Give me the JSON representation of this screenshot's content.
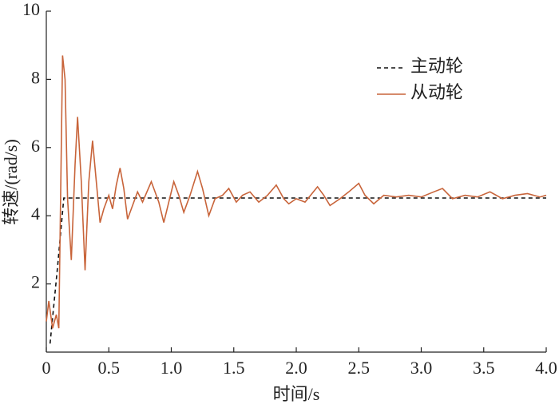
{
  "chart_data": {
    "type": "line",
    "x_label": "时间/s",
    "y_label": "转速/(rad/s)",
    "xlim": [
      0,
      4.0
    ],
    "ylim": [
      0,
      10
    ],
    "xticks": [
      0,
      0.5,
      {
        "value": 1.0,
        "label": "1.0"
      },
      1.5,
      {
        "value": 2.0,
        "label": "2.0"
      },
      2.5,
      {
        "value": 3.0,
        "label": "3.0"
      },
      3.5,
      {
        "value": 4.0,
        "label": "4.0"
      }
    ],
    "yticks": [
      2,
      4,
      6,
      8,
      10
    ],
    "legend": "upper right",
    "series": [
      {
        "name": "主动轮",
        "color": "#111111",
        "dash": true,
        "x": [
          0.03,
          0.09,
          0.14,
          4.0
        ],
        "values": [
          0.25,
          2.5,
          4.52,
          4.52
        ]
      },
      {
        "name": "从动轮",
        "color": "#c8643a",
        "dash": false,
        "x": [
          0,
          0.02,
          0.05,
          0.08,
          0.1,
          0.13,
          0.15,
          0.17,
          0.2,
          0.23,
          0.25,
          0.28,
          0.31,
          0.34,
          0.37,
          0.4,
          0.43,
          0.46,
          0.5,
          0.53,
          0.56,
          0.59,
          0.62,
          0.65,
          0.69,
          0.73,
          0.77,
          0.84,
          0.9,
          0.94,
          0.98,
          1.02,
          1.06,
          1.1,
          1.15,
          1.21,
          1.25,
          1.3,
          1.35,
          1.41,
          1.46,
          1.52,
          1.57,
          1.63,
          1.7,
          1.77,
          1.84,
          1.9,
          1.94,
          2.0,
          2.07,
          2.17,
          2.22,
          2.27,
          2.35,
          2.42,
          2.5,
          2.55,
          2.62,
          2.7,
          2.8,
          2.9,
          3.0,
          3.1,
          3.17,
          3.25,
          3.35,
          3.45,
          3.55,
          3.65,
          3.75,
          3.85,
          3.95,
          4.0
        ],
        "values": [
          0.9,
          1.5,
          0.7,
          1.1,
          0.7,
          8.7,
          8.0,
          4.5,
          2.7,
          5.5,
          6.9,
          5.0,
          2.4,
          5.0,
          6.2,
          5.0,
          3.8,
          4.2,
          4.6,
          4.2,
          4.9,
          5.4,
          4.8,
          3.9,
          4.3,
          4.7,
          4.4,
          5.0,
          4.4,
          3.8,
          4.4,
          5.0,
          4.6,
          4.1,
          4.6,
          5.3,
          4.8,
          4.0,
          4.5,
          4.6,
          4.8,
          4.4,
          4.6,
          4.7,
          4.4,
          4.6,
          4.9,
          4.5,
          4.35,
          4.5,
          4.4,
          4.85,
          4.6,
          4.3,
          4.5,
          4.7,
          4.95,
          4.6,
          4.35,
          4.6,
          4.55,
          4.6,
          4.55,
          4.7,
          4.8,
          4.5,
          4.6,
          4.55,
          4.7,
          4.5,
          4.6,
          4.65,
          4.55,
          4.6
        ]
      }
    ]
  }
}
